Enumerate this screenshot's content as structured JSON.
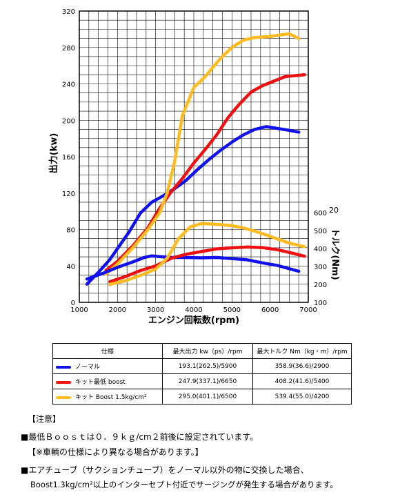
{
  "chart_data": {
    "type": "line",
    "xlabel": "エンジン回転数(rpm)",
    "ylabel_left": "出力(kw)",
    "ylabel_right": "トルク(Nm)",
    "xlim": [
      1000,
      7000
    ],
    "ylim_left": [
      0,
      320
    ],
    "ylim_right": [
      100,
      600
    ],
    "x_ticks": [
      1000,
      2000,
      3000,
      4000,
      5000,
      6000,
      7000
    ],
    "y_ticks_left": [
      0,
      40,
      80,
      120,
      160,
      200,
      240,
      280,
      320
    ],
    "y_ticks_right": [
      100,
      200,
      300,
      400,
      500,
      600
    ],
    "grid": true,
    "annotation_20": "20",
    "colors": {
      "normal": "#1111ee",
      "kit_low": "#ee1111",
      "kit_boost": "#ffbb22"
    },
    "series": [
      {
        "name": "ノーマル",
        "axis": "power",
        "color": "#1111ee",
        "x": [
          1200,
          1500,
          1800,
          2000,
          2300,
          2600,
          2900,
          3200,
          3500,
          3800,
          4100,
          4400,
          4700,
          5000,
          5300,
          5600,
          5900,
          6200,
          6500,
          6750
        ],
        "y": [
          20,
          33,
          47,
          59,
          77,
          98,
          110,
          117,
          125,
          134,
          146,
          157,
          167,
          176,
          184,
          190,
          193,
          191,
          189,
          187
        ]
      },
      {
        "name": "キット最低 boost",
        "axis": "power",
        "color": "#ee1111",
        "x": [
          1700,
          2000,
          2400,
          2800,
          3100,
          3400,
          3700,
          4000,
          4300,
          4600,
          4900,
          5200,
          5500,
          5800,
          6100,
          6400,
          6650,
          6900
        ],
        "y": [
          35,
          45,
          62,
          82,
          103,
          121,
          136,
          153,
          168,
          184,
          203,
          218,
          231,
          238,
          243,
          248,
          249,
          250
        ]
      },
      {
        "name": "キット Boost 1.5kg/cm2",
        "axis": "power",
        "color": "#ffbb22",
        "x": [
          1700,
          2000,
          2400,
          2800,
          3100,
          3300,
          3500,
          3700,
          4000,
          4300,
          4700,
          5000,
          5300,
          5600,
          6000,
          6300,
          6500,
          6750
        ],
        "y": [
          31,
          42,
          60,
          80,
          98,
          120,
          155,
          205,
          236,
          248,
          268,
          280,
          288,
          291,
          292,
          294,
          295,
          290
        ]
      },
      {
        "name": "ノーマル",
        "axis": "torque",
        "color": "#1111ee",
        "x": [
          1200,
          1600,
          2000,
          2400,
          2700,
          2900,
          3100,
          3400,
          3800,
          4200,
          4600,
          5000,
          5400,
          5800,
          6200,
          6750
        ],
        "y": [
          230,
          260,
          295,
          325,
          350,
          359,
          355,
          350,
          350,
          348,
          350,
          344,
          337,
          320,
          305,
          273
        ]
      },
      {
        "name": "キット最低 boost",
        "axis": "torque",
        "color": "#ee1111",
        "x": [
          1800,
          2200,
          2600,
          3000,
          3400,
          3800,
          4200,
          4600,
          5000,
          5400,
          5800,
          6200,
          6600,
          6900
        ],
        "y": [
          215,
          243,
          277,
          303,
          345,
          368,
          383,
          398,
          404,
          408,
          405,
          393,
          373,
          357
        ]
      },
      {
        "name": "キット Boost 1.5kg/cm2",
        "axis": "torque",
        "color": "#ffbb22",
        "x": [
          1800,
          2200,
          2600,
          3000,
          3300,
          3600,
          3900,
          4200,
          4600,
          5000,
          5300,
          5700,
          6100,
          6500,
          6900
        ],
        "y": [
          200,
          220,
          250,
          285,
          345,
          455,
          520,
          539,
          535,
          527,
          515,
          490,
          460,
          430,
          410
        ]
      }
    ]
  },
  "table": {
    "headers": [
      "仕様",
      "最大出力 kw（ps）/rpm",
      "最大トルク Nm（kg・m）/rpm"
    ],
    "rows": [
      {
        "label": "ノーマル",
        "color": "#1111ee",
        "power": "193.1(262.5)/5900",
        "torque": "358.9(36.6)/2900"
      },
      {
        "label": "キット最低 boost",
        "color": "#ee1111",
        "power": "247.9(337.1)/6650",
        "torque": "408.2(41.6)/5400"
      },
      {
        "label": "キット Boost 1.5kg/cm²",
        "color": "#ffbb22",
        "power": "295.0(401.1)/6500",
        "torque": "539.4(55.0)/4200"
      }
    ]
  },
  "notes": {
    "heading": "【注意】",
    "line1": "■最低Ｂｏｏｓｔは０．９ｋｇ/cm２前後に設定されています。",
    "line2": "【※車輌の仕様により異なる場合があります。】",
    "line3": "■エアチューブ（サクションチューブ）をノーマル以外の物に交換した場合、",
    "line4": "Boost1.3kg/cm²以上のインターセプト付近でサージングが発生する場合があります。"
  }
}
